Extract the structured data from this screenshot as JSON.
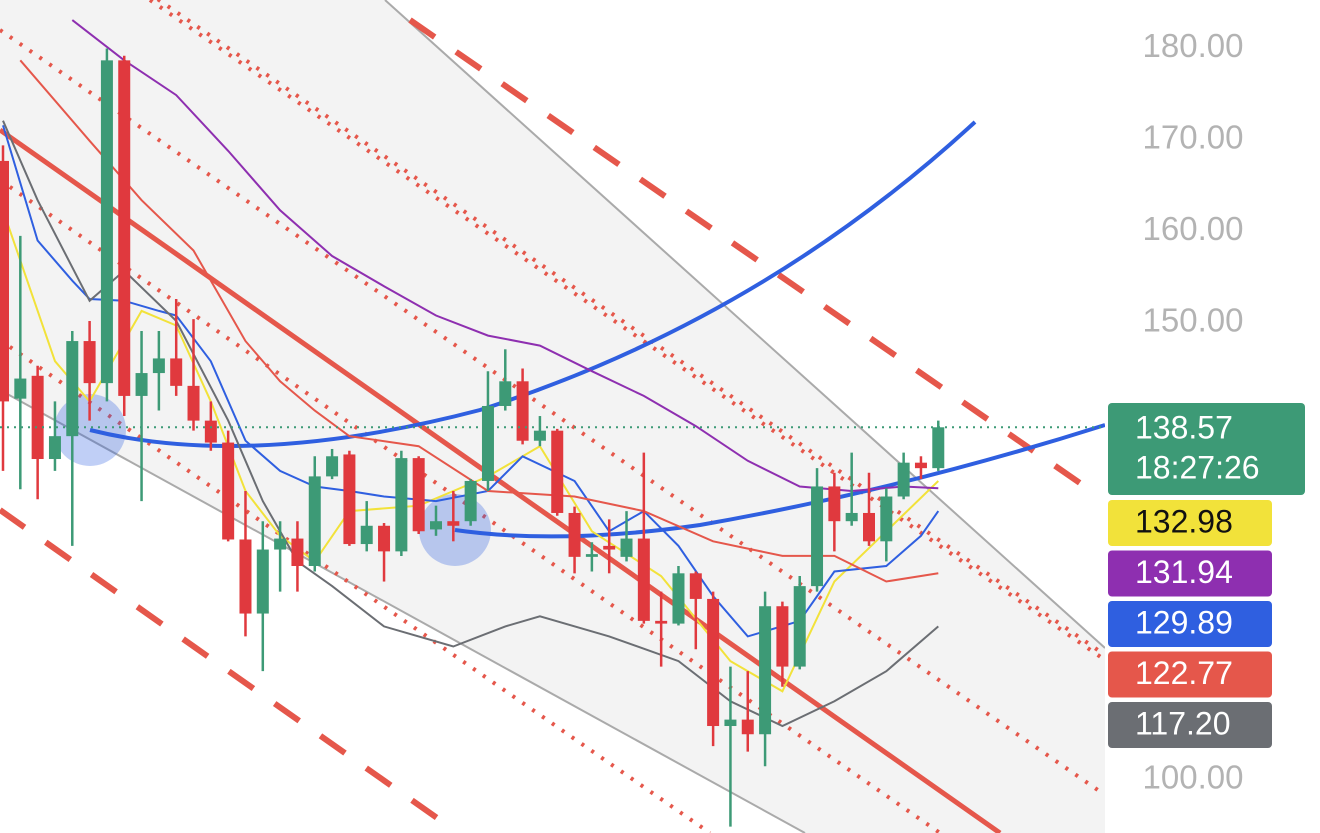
{
  "chart_data": {
    "type": "candlestick",
    "up_color": "#3d9a76",
    "down_color": "#e0393e",
    "open": [
      167.7,
      141.7,
      144.2,
      135.1,
      137.6,
      148.0,
      143.4,
      178.7,
      142.0,
      144.5,
      146.1,
      143.1,
      139.3,
      136.9,
      126.3,
      118.2,
      125.2,
      126.4,
      123.4,
      133.2,
      135.6,
      125.8,
      127.8,
      125.0,
      135.2,
      127.4,
      128.3,
      128.3,
      132.7,
      140.9,
      143.6,
      137.1,
      138.2,
      129.2,
      124.4,
      125.6,
      124.4,
      126.4,
      117.4,
      117.1,
      122.6,
      119.8,
      105.9,
      106.6,
      105.0,
      119.0,
      112.4,
      121.2,
      132.1,
      128.3,
      129.2,
      126.1,
      131.0,
      134.7,
      134.1
    ],
    "high": [
      169.4,
      159.5,
      145.3,
      141.4,
      149.1,
      150.2,
      180.0,
      179.2,
      149.1,
      149.1,
      152.6,
      150.4,
      141.4,
      138.2,
      131.6,
      128.3,
      128.3,
      128.3,
      135.4,
      136.2,
      136.0,
      130.5,
      128.1,
      136.0,
      135.4,
      130.0,
      131.6,
      132.9,
      144.7,
      147.1,
      145.0,
      139.8,
      138.4,
      129.9,
      126.0,
      128.5,
      129.4,
      135.8,
      120.6,
      123.4,
      122.8,
      120.6,
      112.4,
      111.9,
      120.6,
      119.5,
      122.3,
      134.1,
      133.6,
      135.8,
      133.6,
      131.9,
      135.8,
      135.4,
      139.3
    ],
    "low": [
      133.8,
      131.8,
      130.7,
      133.8,
      125.6,
      139.3,
      141.4,
      139.8,
      130.5,
      140.4,
      142.0,
      138.2,
      136.0,
      126.1,
      115.7,
      111.9,
      120.6,
      120.6,
      122.8,
      132.9,
      125.6,
      125.0,
      121.7,
      124.5,
      126.9,
      126.7,
      126.1,
      127.8,
      131.6,
      140.4,
      136.7,
      136.5,
      128.9,
      122.6,
      122.8,
      122.6,
      123.9,
      117.1,
      112.4,
      116.9,
      114.3,
      103.7,
      94.9,
      103.1,
      101.5,
      110.2,
      112.1,
      120.6,
      125.0,
      127.8,
      125.6,
      123.9,
      130.7,
      132.9,
      133.8
    ],
    "close": [
      141.4,
      143.9,
      135.1,
      137.6,
      148.0,
      143.4,
      178.7,
      142.0,
      144.5,
      146.1,
      143.1,
      139.3,
      136.9,
      126.3,
      118.2,
      125.2,
      126.4,
      123.4,
      133.2,
      135.4,
      125.8,
      127.8,
      125.0,
      135.2,
      127.2,
      128.3,
      127.8,
      132.7,
      140.9,
      143.6,
      137.1,
      138.2,
      129.2,
      124.4,
      124.7,
      125.2,
      126.4,
      117.4,
      117.1,
      122.6,
      119.8,
      105.9,
      106.6,
      105.0,
      119.0,
      112.4,
      121.2,
      132.1,
      128.3,
      129.2,
      126.1,
      131.0,
      134.7,
      134.1,
      138.57
    ],
    "countdown": "18:27:26",
    "indicators": [
      {
        "color": "#f2e23a",
        "x": [
          0,
          3,
          5,
          8,
          10,
          12,
          14,
          16,
          18,
          20,
          24,
          28,
          31,
          34,
          38,
          42,
          45,
          48,
          51,
          54
        ],
        "values": [
          162.3,
          145.8,
          141.4,
          151.3,
          149.7,
          141.4,
          131.6,
          126.7,
          123.9,
          129.4,
          130.0,
          133.2,
          136.5,
          127.2,
          122.3,
          113.0,
          109.7,
          121.7,
          127.2,
          132.7
        ],
        "tag": 132.98
      },
      {
        "color": "#8e2fb0",
        "x": [
          4,
          7,
          10,
          13,
          16,
          19,
          22,
          25,
          28,
          31,
          34,
          37,
          40,
          43,
          46,
          49,
          52,
          54
        ],
        "values": [
          183.1,
          178.7,
          174.9,
          168.8,
          162.3,
          157.3,
          154.0,
          150.8,
          148.6,
          147.5,
          144.7,
          142.0,
          138.7,
          134.9,
          132.1,
          131.6,
          132.1,
          131.9
        ],
        "tag": 131.94
      },
      {
        "color": "#2f5fe0",
        "x": [
          0,
          2,
          4,
          5,
          7,
          9,
          10,
          12,
          14,
          16,
          18,
          20,
          22,
          25,
          28,
          30,
          33,
          35,
          37,
          39,
          41,
          43,
          46,
          48,
          51,
          53,
          54
        ],
        "values": [
          171.6,
          159.0,
          154.6,
          152.6,
          152.4,
          151.3,
          150.8,
          145.8,
          137.1,
          133.8,
          132.1,
          131.6,
          131.0,
          130.5,
          131.6,
          135.4,
          132.7,
          127.2,
          129.4,
          125.6,
          120.1,
          115.7,
          117.4,
          122.8,
          123.4,
          126.7,
          129.4
        ],
        "tag": 129.89
      },
      {
        "color": "#e5574b",
        "x": [
          1,
          5,
          8,
          11,
          14,
          16,
          18,
          20,
          24,
          28,
          33,
          37,
          41,
          45,
          48,
          51,
          54
        ],
        "values": [
          178.7,
          169.9,
          163.4,
          157.9,
          148.0,
          143.6,
          140.4,
          137.6,
          136.5,
          131.6,
          131.0,
          129.4,
          126.1,
          124.5,
          124.5,
          121.7,
          122.6
        ],
        "tag": 122.77
      },
      {
        "color": "#6b6e73",
        "x": [
          0,
          2,
          5,
          7,
          10,
          13,
          15,
          17,
          19,
          22,
          26,
          29,
          31,
          35,
          39,
          42,
          45,
          48,
          51,
          54
        ],
        "values": [
          172.1,
          163.4,
          152.4,
          155.7,
          150.2,
          139.3,
          130.5,
          123.9,
          121.2,
          116.8,
          114.6,
          116.8,
          117.9,
          115.7,
          113.0,
          108.6,
          105.9,
          108.6,
          111.9,
          116.8
        ],
        "tag": {
          "value": 117.2,
          "label": "117.20"
        }
      }
    ],
    "ylim": [
      94.2,
      185.3
    ],
    "yticks": [
      {
        "value": 100,
        "label": "100.00"
      },
      {
        "value": 150,
        "label": "150.00"
      },
      {
        "value": 160,
        "label": "160.00"
      },
      {
        "value": 170,
        "label": "170.00"
      },
      {
        "value": 180,
        "label": "180.00"
      }
    ]
  }
}
